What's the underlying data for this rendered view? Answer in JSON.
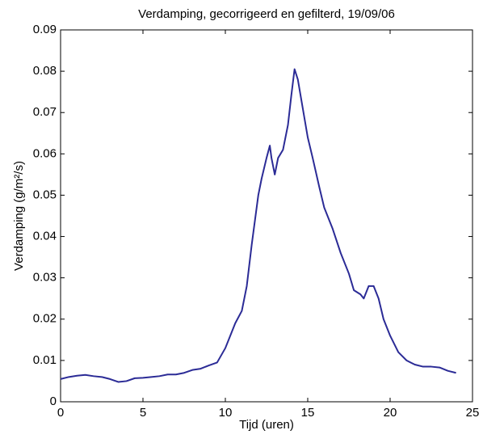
{
  "chart_data": {
    "type": "line",
    "title": "Verdamping, gecorrigeerd en gefilterd, 19/09/06",
    "x_label": "Tijd (uren)",
    "y_label": "Verdamping (g/m²/s)",
    "color": "#2b2b96",
    "x": [
      0,
      0.5,
      1,
      1.5,
      2,
      2.5,
      3,
      3.5,
      4,
      4.5,
      5,
      5.5,
      6,
      6.5,
      7,
      7.5,
      8,
      8.5,
      9,
      9.5,
      10,
      10.3,
      10.6,
      11,
      11.3,
      11.6,
      12,
      12.2,
      12.5,
      12.7,
      12.8,
      13,
      13.2,
      13.5,
      13.8,
      14,
      14.2,
      14.4,
      14.7,
      15,
      15.3,
      15.7,
      16,
      16.5,
      17,
      17.5,
      17.8,
      18.2,
      18.4,
      18.7,
      19,
      19.3,
      19.6,
      20,
      20.5,
      21,
      21.5,
      22,
      22.5,
      23,
      23.5,
      24
    ],
    "values": [
      0.0055,
      0.006,
      0.0063,
      0.0065,
      0.0062,
      0.006,
      0.0055,
      0.0048,
      0.005,
      0.0057,
      0.0058,
      0.006,
      0.0062,
      0.0066,
      0.0066,
      0.007,
      0.0077,
      0.008,
      0.0088,
      0.0095,
      0.013,
      0.016,
      0.019,
      0.022,
      0.028,
      0.038,
      0.05,
      0.054,
      0.059,
      0.062,
      0.059,
      0.055,
      0.059,
      0.061,
      0.067,
      0.074,
      0.0805,
      0.078,
      0.071,
      0.064,
      0.059,
      0.052,
      0.047,
      0.042,
      0.036,
      0.031,
      0.027,
      0.026,
      0.025,
      0.028,
      0.028,
      0.025,
      0.02,
      0.016,
      0.012,
      0.01,
      0.009,
      0.0085,
      0.0085,
      0.0083,
      0.0075,
      0.007
    ],
    "xlim": [
      0,
      25
    ],
    "xticks": [
      0,
      5,
      10,
      15,
      20,
      25
    ],
    "ylim": [
      0,
      0.09
    ],
    "yticks": [
      0,
      0.01,
      0.02,
      0.03,
      0.04,
      0.05,
      0.06,
      0.07,
      0.08,
      0.09
    ]
  }
}
